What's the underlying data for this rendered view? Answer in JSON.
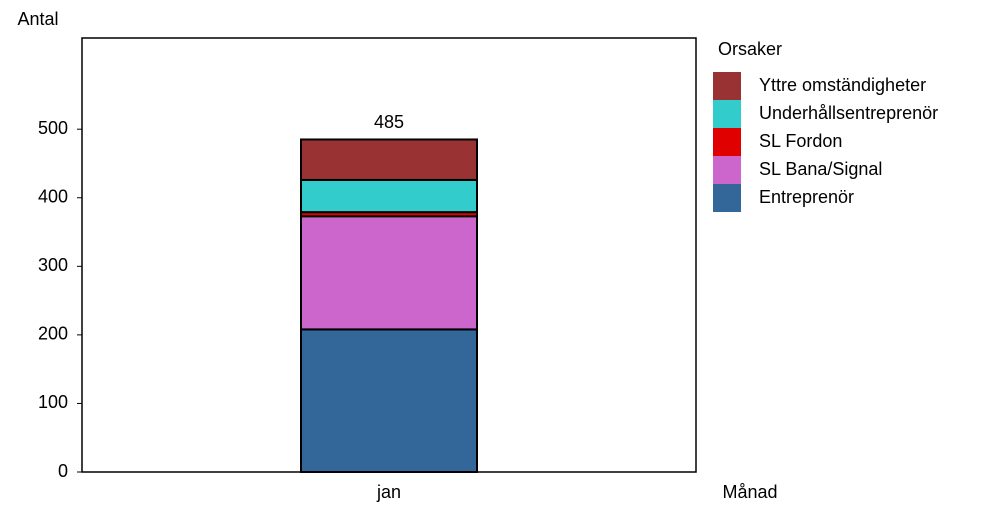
{
  "chart_data": {
    "type": "stacked_bar",
    "y_label": "Antal",
    "x_label": "Månad",
    "legend_title": "Orsaker",
    "categories": [
      "jan"
    ],
    "series": [
      {
        "name": "Entreprenör",
        "color": "#336699",
        "values": [
          208
        ]
      },
      {
        "name": "SL Bana/Signal",
        "color": "#cc66cc",
        "values": [
          165
        ]
      },
      {
        "name": "SL Fordon",
        "color": "#e00000",
        "values": [
          6
        ]
      },
      {
        "name": "Underhållsentreprenör",
        "color": "#33cccc",
        "values": [
          47
        ]
      },
      {
        "name": "Yttre omständigheter",
        "color": "#993333",
        "values": [
          59
        ]
      }
    ],
    "totals": [
      485
    ],
    "ylim": [
      0,
      633
    ],
    "yticks": [
      0,
      100,
      200,
      300,
      400,
      500
    ],
    "legend": "right"
  }
}
